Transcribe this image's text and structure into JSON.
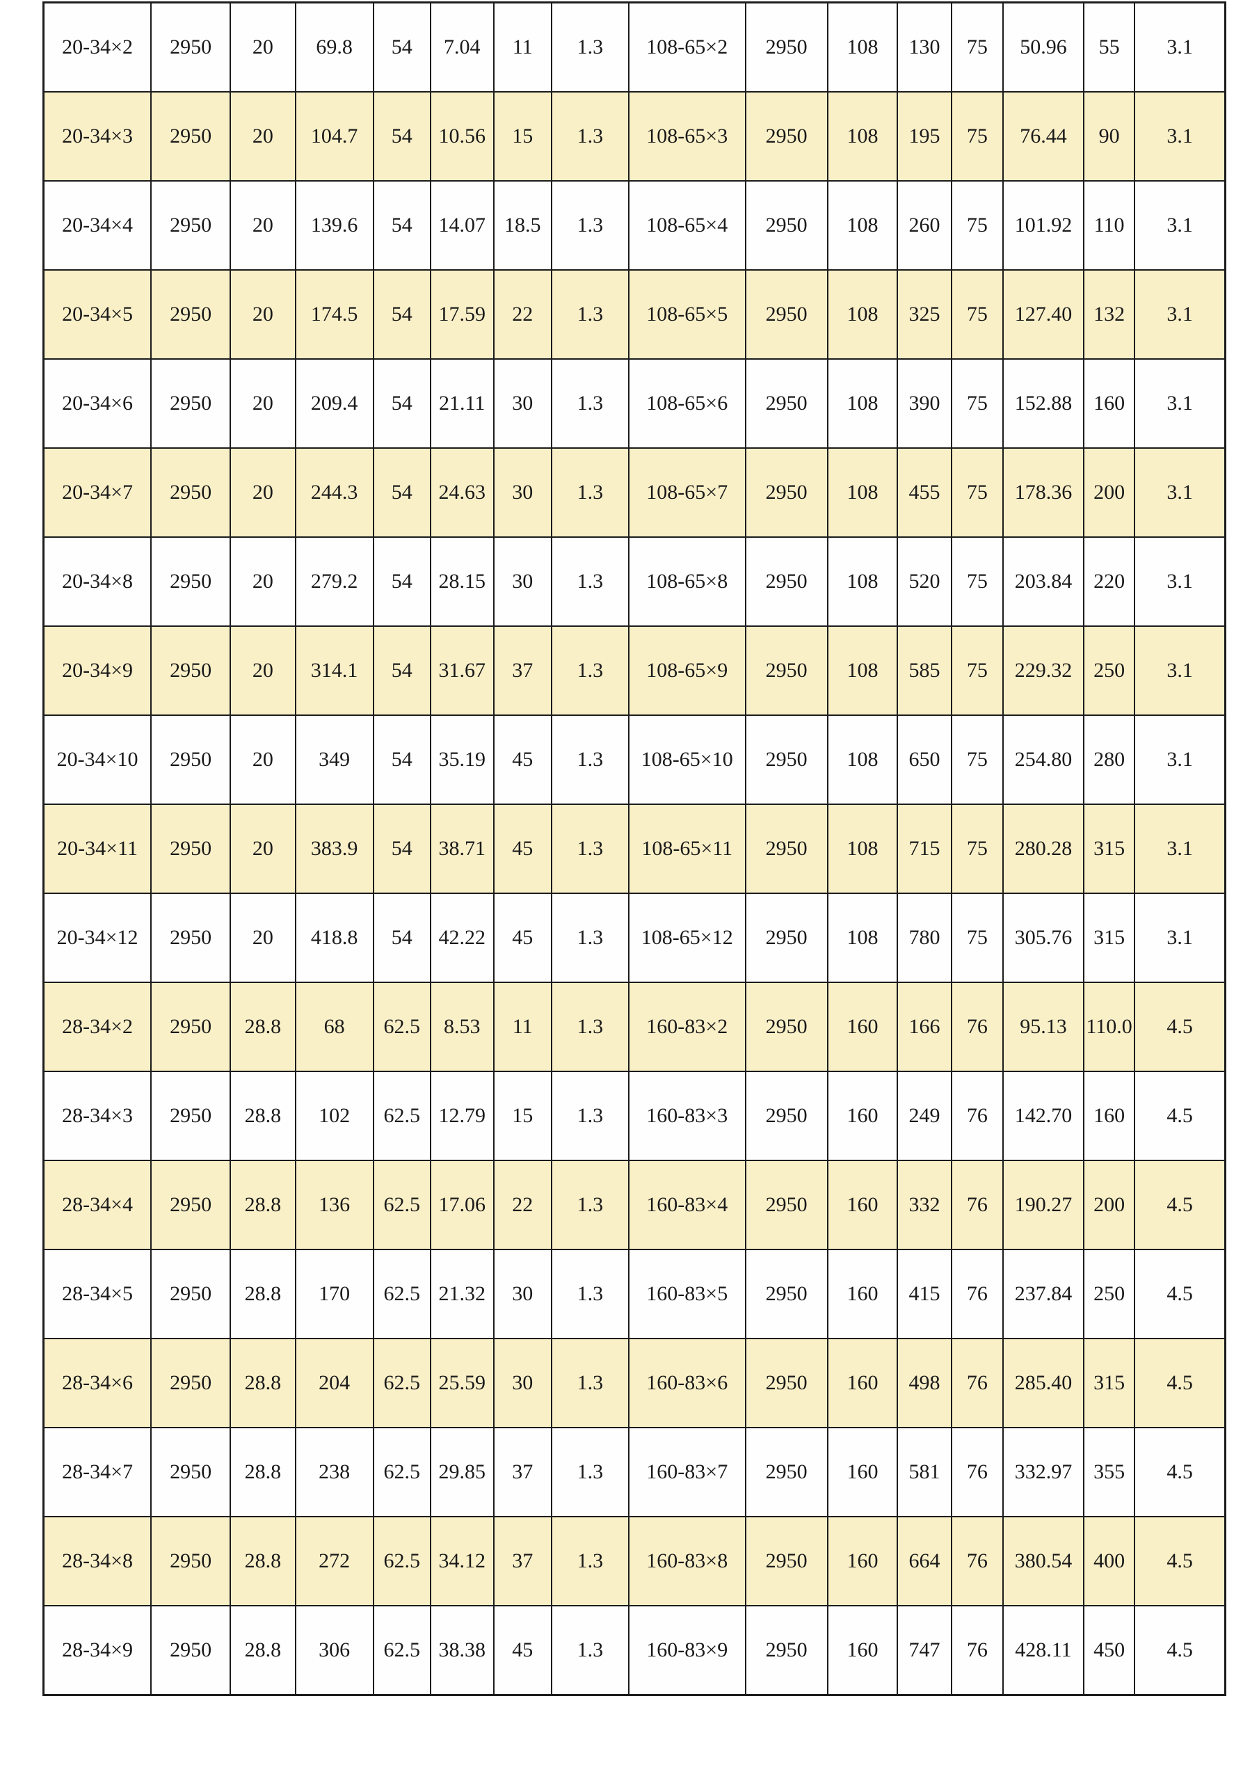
{
  "page": {
    "background_color": "#ffffff"
  },
  "table": {
    "row_highlight_color": "#faf0c8",
    "row_default_color": "#fefefe",
    "border_color": "#1c1c1c",
    "text_color": "#1a1a1a",
    "rows": [
      [
        "20-34×2",
        "2950",
        "20",
        "69.8",
        "54",
        "7.04",
        "11",
        "1.3",
        "108-65×2",
        "2950",
        "108",
        "130",
        "75",
        "50.96",
        "55",
        "3.1"
      ],
      [
        "20-34×3",
        "2950",
        "20",
        "104.7",
        "54",
        "10.56",
        "15",
        "1.3",
        "108-65×3",
        "2950",
        "108",
        "195",
        "75",
        "76.44",
        "90",
        "3.1"
      ],
      [
        "20-34×4",
        "2950",
        "20",
        "139.6",
        "54",
        "14.07",
        "18.5",
        "1.3",
        "108-65×4",
        "2950",
        "108",
        "260",
        "75",
        "101.92",
        "110",
        "3.1"
      ],
      [
        "20-34×5",
        "2950",
        "20",
        "174.5",
        "54",
        "17.59",
        "22",
        "1.3",
        "108-65×5",
        "2950",
        "108",
        "325",
        "75",
        "127.40",
        "132",
        "3.1"
      ],
      [
        "20-34×6",
        "2950",
        "20",
        "209.4",
        "54",
        "21.11",
        "30",
        "1.3",
        "108-65×6",
        "2950",
        "108",
        "390",
        "75",
        "152.88",
        "160",
        "3.1"
      ],
      [
        "20-34×7",
        "2950",
        "20",
        "244.3",
        "54",
        "24.63",
        "30",
        "1.3",
        "108-65×7",
        "2950",
        "108",
        "455",
        "75",
        "178.36",
        "200",
        "3.1"
      ],
      [
        "20-34×8",
        "2950",
        "20",
        "279.2",
        "54",
        "28.15",
        "30",
        "1.3",
        "108-65×8",
        "2950",
        "108",
        "520",
        "75",
        "203.84",
        "220",
        "3.1"
      ],
      [
        "20-34×9",
        "2950",
        "20",
        "314.1",
        "54",
        "31.67",
        "37",
        "1.3",
        "108-65×9",
        "2950",
        "108",
        "585",
        "75",
        "229.32",
        "250",
        "3.1"
      ],
      [
        "20-34×10",
        "2950",
        "20",
        "349",
        "54",
        "35.19",
        "45",
        "1.3",
        "108-65×10",
        "2950",
        "108",
        "650",
        "75",
        "254.80",
        "280",
        "3.1"
      ],
      [
        "20-34×11",
        "2950",
        "20",
        "383.9",
        "54",
        "38.71",
        "45",
        "1.3",
        "108-65×11",
        "2950",
        "108",
        "715",
        "75",
        "280.28",
        "315",
        "3.1"
      ],
      [
        "20-34×12",
        "2950",
        "20",
        "418.8",
        "54",
        "42.22",
        "45",
        "1.3",
        "108-65×12",
        "2950",
        "108",
        "780",
        "75",
        "305.76",
        "315",
        "3.1"
      ],
      [
        "28-34×2",
        "2950",
        "28.8",
        "68",
        "62.5",
        "8.53",
        "11",
        "1.3",
        "160-83×2",
        "2950",
        "160",
        "166",
        "76",
        "95.13",
        "110.0",
        "4.5"
      ],
      [
        "28-34×3",
        "2950",
        "28.8",
        "102",
        "62.5",
        "12.79",
        "15",
        "1.3",
        "160-83×3",
        "2950",
        "160",
        "249",
        "76",
        "142.70",
        "160",
        "4.5"
      ],
      [
        "28-34×4",
        "2950",
        "28.8",
        "136",
        "62.5",
        "17.06",
        "22",
        "1.3",
        "160-83×4",
        "2950",
        "160",
        "332",
        "76",
        "190.27",
        "200",
        "4.5"
      ],
      [
        "28-34×5",
        "2950",
        "28.8",
        "170",
        "62.5",
        "21.32",
        "30",
        "1.3",
        "160-83×5",
        "2950",
        "160",
        "415",
        "76",
        "237.84",
        "250",
        "4.5"
      ],
      [
        "28-34×6",
        "2950",
        "28.8",
        "204",
        "62.5",
        "25.59",
        "30",
        "1.3",
        "160-83×6",
        "2950",
        "160",
        "498",
        "76",
        "285.40",
        "315",
        "4.5"
      ],
      [
        "28-34×7",
        "2950",
        "28.8",
        "238",
        "62.5",
        "29.85",
        "37",
        "1.3",
        "160-83×7",
        "2950",
        "160",
        "581",
        "76",
        "332.97",
        "355",
        "4.5"
      ],
      [
        "28-34×8",
        "2950",
        "28.8",
        "272",
        "62.5",
        "34.12",
        "37",
        "1.3",
        "160-83×8",
        "2950",
        "160",
        "664",
        "76",
        "380.54",
        "400",
        "4.5"
      ],
      [
        "28-34×9",
        "2950",
        "28.8",
        "306",
        "62.5",
        "38.38",
        "45",
        "1.3",
        "160-83×9",
        "2950",
        "160",
        "747",
        "76",
        "428.11",
        "450",
        "4.5"
      ]
    ]
  }
}
